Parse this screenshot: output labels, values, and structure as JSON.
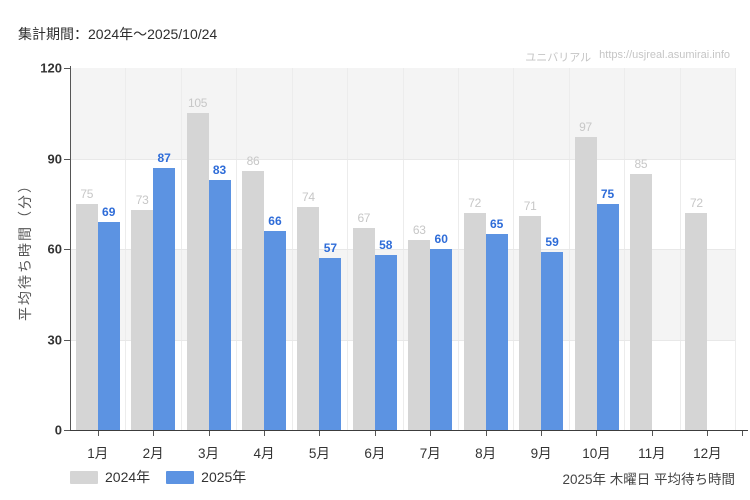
{
  "header": {
    "period_label": "集計期間：2024年～2025/10/24",
    "watermark_site": "ユニバリアル",
    "watermark_url": "https://usjreal.asumirai.info"
  },
  "chart_data": {
    "type": "bar",
    "title": "",
    "xlabel": "",
    "ylabel": "平均待ち時間（分）",
    "categories": [
      "1月",
      "2月",
      "3月",
      "4月",
      "5月",
      "6月",
      "7月",
      "8月",
      "9月",
      "10月",
      "11月",
      "12月"
    ],
    "series": [
      {
        "name": "2024年",
        "color": "#d5d5d5",
        "label_color": "#c7c7c7",
        "values": [
          75,
          73,
          105,
          86,
          74,
          67,
          63,
          72,
          71,
          97,
          85,
          72
        ]
      },
      {
        "name": "2025年",
        "color": "#5c93e2",
        "label_color": "#2e6cd8",
        "values": [
          69,
          87,
          83,
          66,
          57,
          58,
          60,
          65,
          59,
          75,
          null,
          null
        ]
      }
    ],
    "ylim": [
      0,
      120
    ],
    "yticks": [
      0,
      30,
      60,
      90,
      120
    ],
    "grid": true,
    "band_color": "#f4f4f4",
    "legend_position": "bottom-left"
  },
  "footer": {
    "caption": "2025年 木曜日 平均待ち時間"
  }
}
